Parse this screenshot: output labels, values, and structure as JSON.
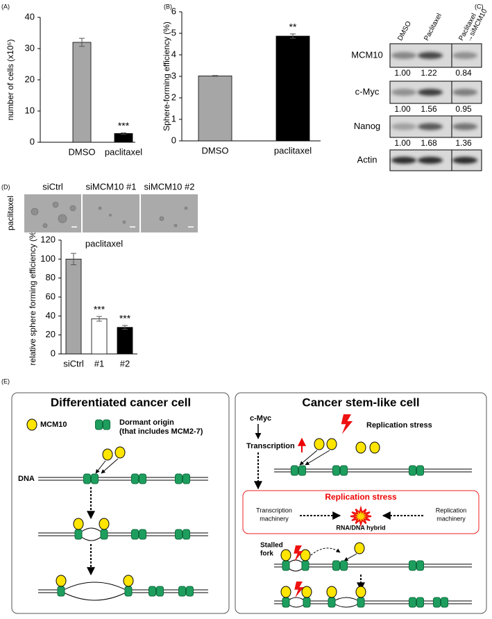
{
  "panel_labels": [
    "(A)",
    "(B)",
    "(C)",
    "(D)",
    "(E)"
  ],
  "chart_data": [
    {
      "type": "bar",
      "ylabel": "number of cells (x10⁵)",
      "categories": [
        "DMSO",
        "paclitaxel"
      ],
      "values": [
        32,
        2.8
      ],
      "errors": [
        1.3,
        0.2
      ],
      "colors": [
        "#a6a6a6",
        "#000000"
      ],
      "annotations": [
        null,
        "***"
      ],
      "ylim": [
        0,
        40
      ],
      "yticks": [
        0,
        10,
        20,
        30,
        40
      ]
    },
    {
      "type": "bar",
      "ylabel": "Sphere-forming efficiency (%)",
      "categories": [
        "DMSO",
        "paclitaxel"
      ],
      "values": [
        3.02,
        4.87
      ],
      "errors": [
        0.02,
        0.1
      ],
      "colors": [
        "#a6a6a6",
        "#000000"
      ],
      "annotations": [
        null,
        "**"
      ],
      "ylim": [
        0,
        6
      ],
      "yticks": [
        0,
        1,
        2,
        3,
        4,
        5,
        6
      ]
    },
    {
      "type": "bar",
      "title": "paclitaxel",
      "ylabel": "relative sphere forming efficiency (%)",
      "categories": [
        "siCtrl",
        "#1",
        "#2"
      ],
      "values": [
        100,
        37,
        28
      ],
      "errors": [
        6,
        2.5,
        2
      ],
      "colors": [
        "#a6a6a6",
        "#ffffff",
        "#000000"
      ],
      "annotations": [
        null,
        "***",
        "***"
      ],
      "ylim": [
        0,
        120
      ],
      "yticks": [
        0,
        20,
        40,
        60,
        80,
        100,
        120
      ]
    }
  ],
  "blot": {
    "lanes": [
      [
        "DMSO"
      ],
      [
        "Paclitaxel"
      ],
      [
        "Paclitaxel",
        "→siMCM10"
      ]
    ],
    "rows": [
      {
        "label": "MCM10",
        "quant": [
          "1.00",
          "1.22",
          "0.84"
        ]
      },
      {
        "label": "c-Myc",
        "quant": [
          "1.00",
          "1.56",
          "0.95"
        ]
      },
      {
        "label": "Nanog",
        "quant": [
          "1.00",
          "1.68",
          "1.36"
        ]
      },
      {
        "label": "Actin"
      }
    ]
  },
  "images": {
    "row_label": "paclitaxel",
    "columns": [
      "siCtrl",
      "siMCM10 #1",
      "siMCM10 #2"
    ]
  },
  "diagram": {
    "left": {
      "title": "Differentiated cancer cell",
      "legend_mcm10": "MCM10",
      "legend_origin": [
        "Dormant origin",
        "(that includes MCM2-7)"
      ],
      "dna": "DNA"
    },
    "right": {
      "title": "Cancer stem-like cell",
      "cmyc": "c-Myc",
      "transcription": "Transcription",
      "stress": "Replication stress",
      "box_title": "Replication stress",
      "transcription_machinery": [
        "Transcription",
        "machinery"
      ],
      "replication_machinery": [
        "Replication",
        "machinery"
      ],
      "hybrid": "RNA/DNA hybrid",
      "stalled_fork": [
        "Stalled",
        "fork"
      ]
    }
  }
}
